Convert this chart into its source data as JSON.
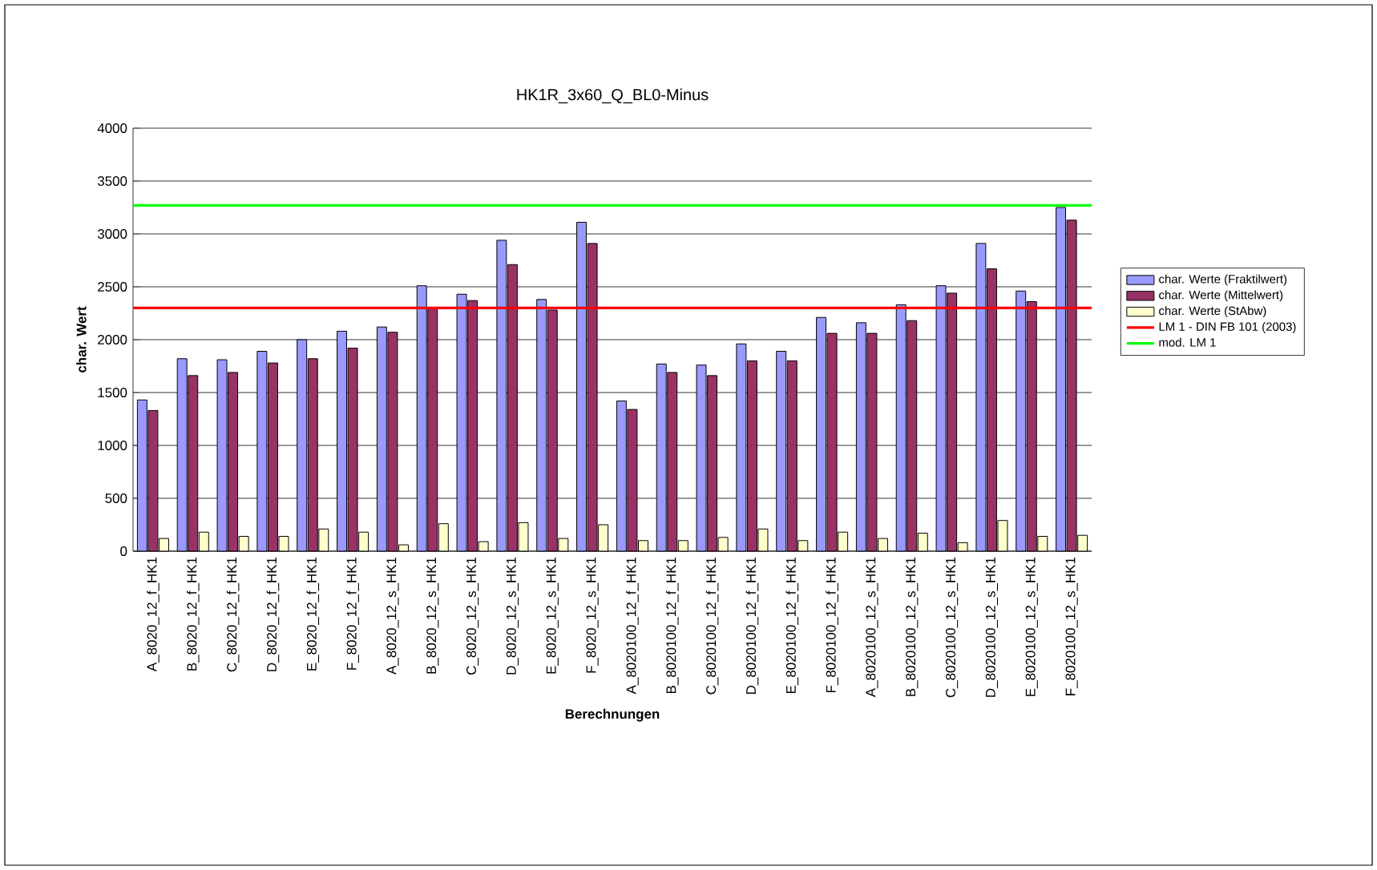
{
  "chart_data": {
    "type": "bar",
    "title": "HK1R_3x60_Q_BL0-Minus",
    "xlabel": "Berechnungen",
    "ylabel": "char. Wert",
    "categories": [
      "A_8020_12_f_HK1",
      "B_8020_12_f_HK1",
      "C_8020_12_f_HK1",
      "D_8020_12_f_HK1",
      "E_8020_12_f_HK1",
      "F_8020_12_f_HK1",
      "A_8020_12_s_HK1",
      "B_8020_12_s_HK1",
      "C_8020_12_s_HK1",
      "D_8020_12_s_HK1",
      "E_8020_12_s_HK1",
      "F_8020_12_s_HK1",
      "A_8020100_12_f_HK1",
      "B_8020100_12_f_HK1",
      "C_8020100_12_f_HK1",
      "D_8020100_12_f_HK1",
      "E_8020100_12_f_HK1",
      "F_8020100_12_f_HK1",
      "A_8020100_12_s_HK1",
      "B_8020100_12_s_HK1",
      "C_8020100_12_s_HK1",
      "D_8020100_12_s_HK1",
      "E_8020100_12_s_HK1",
      "F_8020100_12_s_HK1"
    ],
    "series": [
      {
        "name": "char. Werte (Fraktilwert)",
        "color": "#9999ff",
        "values": [
          1430,
          1820,
          1810,
          1890,
          2000,
          2080,
          2120,
          2510,
          2430,
          2940,
          2380,
          3110,
          1420,
          1770,
          1760,
          1960,
          1890,
          2210,
          2160,
          2330,
          2510,
          2910,
          2460,
          3250
        ]
      },
      {
        "name": "char. Werte (Mittelwert)",
        "color": "#993366",
        "values": [
          1330,
          1660,
          1690,
          1780,
          1820,
          1920,
          2070,
          2300,
          2370,
          2710,
          2280,
          2910,
          1340,
          1690,
          1660,
          1800,
          1800,
          2060,
          2060,
          2180,
          2440,
          2670,
          2360,
          3130
        ]
      },
      {
        "name": "char. Werte (StAbw)",
        "color": "#ffffcc",
        "values": [
          120,
          180,
          140,
          140,
          210,
          180,
          60,
          260,
          90,
          270,
          120,
          250,
          100,
          100,
          130,
          210,
          100,
          180,
          120,
          170,
          80,
          290,
          140,
          150
        ]
      }
    ],
    "ref_lines": [
      {
        "axis": "y",
        "value": 2300,
        "label": "LM 1 - DIN FB 101 (2003)",
        "color": "#ff0000"
      },
      {
        "axis": "y",
        "value": 3270,
        "label": "mod. LM 1",
        "color": "#00ff00"
      }
    ],
    "ylim": [
      0,
      4000
    ],
    "yticks": [
      0,
      500,
      1000,
      1500,
      2000,
      2500,
      3000,
      3500,
      4000
    ],
    "grid": "y",
    "legend": "right"
  }
}
